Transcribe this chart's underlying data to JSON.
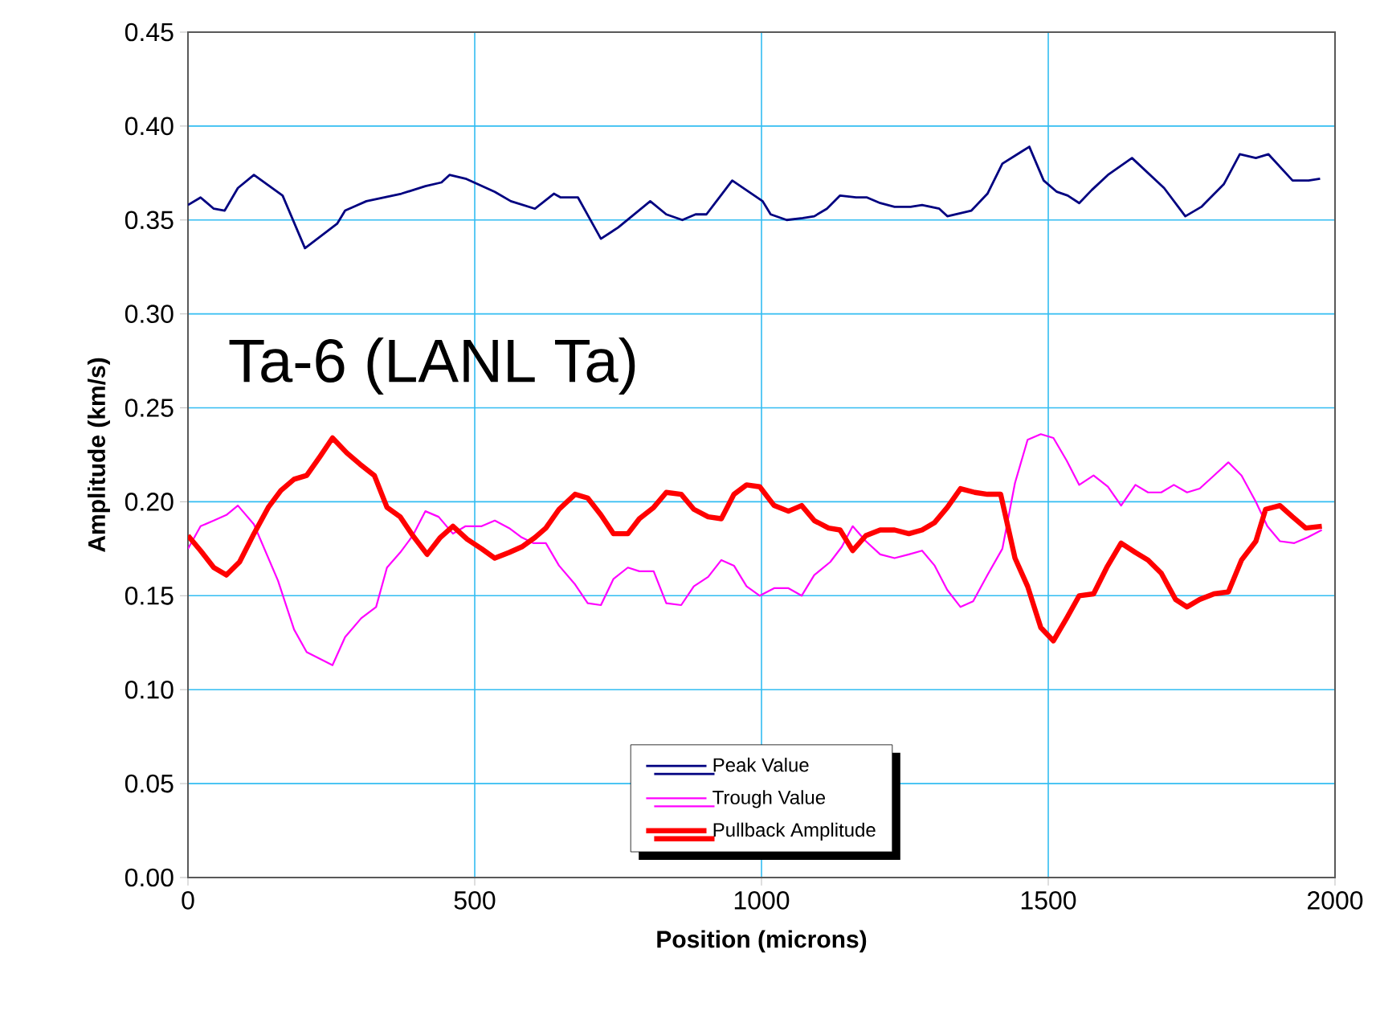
{
  "chart_data": {
    "type": "line",
    "annotations": [
      "Ta-6 (LANL Ta)"
    ],
    "xlabel": "Position (microns)",
    "ylabel": "Amplitude (km/s)",
    "xlim": [
      0,
      2000
    ],
    "xticks": [
      0,
      500,
      1000,
      1500,
      2000
    ],
    "ylim": [
      0,
      0.45
    ],
    "yticks": [
      {
        "value": 0,
        "label": "0.00"
      },
      {
        "value": 0.05,
        "label": "0.05"
      },
      {
        "value": 0.1,
        "label": "0.10"
      },
      {
        "value": 0.15,
        "label": "0.15"
      },
      {
        "value": 0.2,
        "label": "0.20"
      },
      {
        "value": 0.25,
        "label": "0.25"
      },
      {
        "value": 0.3,
        "label": "0.30"
      },
      {
        "value": 0.35,
        "label": "0.35"
      },
      {
        "value": 0.4,
        "label": "0.40"
      },
      {
        "value": 0.45,
        "label": "0.45"
      }
    ],
    "grid": true,
    "legend": "bottom",
    "marker": "none",
    "line_style": "solid",
    "series": [
      {
        "name": "Peak Value",
        "color": "#000080",
        "x": [
          0,
          22,
          45,
          64,
          87,
          115,
          165,
          204,
          260,
          274,
          311,
          372,
          414,
          442,
          456,
          484,
          535,
          563,
          605,
          638,
          650,
          680,
          720,
          750,
          806,
          834,
          862,
          885,
          904,
          949,
          1002,
          1016,
          1044,
          1072,
          1092,
          1114,
          1137,
          1165,
          1184,
          1207,
          1232,
          1260,
          1280,
          1310,
          1324,
          1366,
          1394,
          1420,
          1467,
          1492,
          1515,
          1534,
          1554,
          1576,
          1604,
          1646,
          1702,
          1739,
          1767,
          1806,
          1834,
          1862,
          1884,
          1926,
          1954,
          1974
        ],
        "values": [
          0.358,
          0.362,
          0.356,
          0.355,
          0.367,
          0.374,
          0.363,
          0.335,
          0.348,
          0.355,
          0.36,
          0.364,
          0.368,
          0.37,
          0.374,
          0.372,
          0.365,
          0.36,
          0.356,
          0.364,
          0.362,
          0.362,
          0.34,
          0.346,
          0.36,
          0.353,
          0.35,
          0.353,
          0.353,
          0.371,
          0.36,
          0.353,
          0.35,
          0.351,
          0.352,
          0.356,
          0.363,
          0.362,
          0.362,
          0.359,
          0.357,
          0.357,
          0.358,
          0.356,
          0.352,
          0.355,
          0.364,
          0.38,
          0.389,
          0.371,
          0.365,
          0.363,
          0.359,
          0.366,
          0.374,
          0.383,
          0.367,
          0.352,
          0.357,
          0.369,
          0.385,
          0.383,
          0.385,
          0.371,
          0.371,
          0.372
        ]
      },
      {
        "name": "Trough Value",
        "color": "#ff00ff",
        "x": [
          0,
          22,
          45,
          67,
          87,
          115,
          157,
          185,
          207,
          252,
          274,
          302,
          328,
          347,
          370,
          392,
          414,
          437,
          462,
          484,
          512,
          535,
          560,
          582,
          602,
          624,
          647,
          675,
          697,
          720,
          742,
          767,
          787,
          812,
          834,
          860,
          882,
          907,
          930,
          952,
          974,
          997,
          1022,
          1047,
          1070,
          1092,
          1120,
          1140,
          1159,
          1182,
          1207,
          1232,
          1257,
          1280,
          1302,
          1324,
          1347,
          1369,
          1394,
          1420,
          1442,
          1464,
          1487,
          1509,
          1532,
          1554,
          1579,
          1604,
          1627,
          1652,
          1674,
          1697,
          1719,
          1742,
          1764,
          1789,
          1814,
          1837,
          1862,
          1882,
          1904,
          1929,
          1952,
          1977
        ],
        "values": [
          0.175,
          0.187,
          0.19,
          0.193,
          0.198,
          0.188,
          0.158,
          0.132,
          0.12,
          0.113,
          0.128,
          0.138,
          0.144,
          0.165,
          0.173,
          0.182,
          0.195,
          0.192,
          0.183,
          0.187,
          0.187,
          0.19,
          0.186,
          0.181,
          0.178,
          0.178,
          0.166,
          0.156,
          0.146,
          0.145,
          0.159,
          0.165,
          0.163,
          0.163,
          0.146,
          0.145,
          0.155,
          0.16,
          0.169,
          0.166,
          0.155,
          0.15,
          0.154,
          0.154,
          0.15,
          0.161,
          0.168,
          0.176,
          0.187,
          0.179,
          0.172,
          0.17,
          0.172,
          0.174,
          0.166,
          0.153,
          0.144,
          0.147,
          0.161,
          0.175,
          0.21,
          0.233,
          0.236,
          0.234,
          0.222,
          0.209,
          0.214,
          0.208,
          0.198,
          0.209,
          0.205,
          0.205,
          0.209,
          0.205,
          0.207,
          0.214,
          0.221,
          0.214,
          0.2,
          0.187,
          0.179,
          0.178,
          0.181,
          0.185
        ]
      },
      {
        "name": "Pullback Amplitude",
        "color": "#ff0000",
        "x": [
          0,
          22,
          45,
          67,
          90,
          115,
          140,
          162,
          185,
          207,
          230,
          252,
          277,
          300,
          325,
          347,
          370,
          392,
          417,
          440,
          462,
          487,
          512,
          535,
          560,
          582,
          605,
          624,
          647,
          675,
          697,
          720,
          742,
          767,
          787,
          812,
          834,
          860,
          882,
          907,
          930,
          952,
          974,
          997,
          1022,
          1047,
          1070,
          1092,
          1117,
          1137,
          1159,
          1182,
          1207,
          1232,
          1257,
          1280,
          1302,
          1324,
          1347,
          1372,
          1394,
          1417,
          1442,
          1464,
          1487,
          1509,
          1532,
          1554,
          1579,
          1602,
          1627,
          1652,
          1674,
          1697,
          1722,
          1742,
          1764,
          1789,
          1814,
          1837,
          1862,
          1879,
          1904,
          1926,
          1949,
          1977
        ],
        "values": [
          0.182,
          0.174,
          0.165,
          0.161,
          0.168,
          0.183,
          0.197,
          0.206,
          0.212,
          0.214,
          0.224,
          0.234,
          0.226,
          0.22,
          0.214,
          0.197,
          0.192,
          0.182,
          0.172,
          0.181,
          0.187,
          0.18,
          0.175,
          0.17,
          0.173,
          0.176,
          0.181,
          0.186,
          0.196,
          0.204,
          0.202,
          0.193,
          0.183,
          0.183,
          0.191,
          0.197,
          0.205,
          0.204,
          0.196,
          0.192,
          0.191,
          0.204,
          0.209,
          0.208,
          0.198,
          0.195,
          0.198,
          0.19,
          0.186,
          0.185,
          0.174,
          0.182,
          0.185,
          0.185,
          0.183,
          0.185,
          0.189,
          0.197,
          0.207,
          0.205,
          0.204,
          0.204,
          0.17,
          0.155,
          0.133,
          0.126,
          0.138,
          0.15,
          0.151,
          0.165,
          0.178,
          0.173,
          0.169,
          0.162,
          0.148,
          0.144,
          0.148,
          0.151,
          0.152,
          0.169,
          0.179,
          0.196,
          0.198,
          0.192,
          0.186,
          0.187
        ]
      }
    ]
  }
}
